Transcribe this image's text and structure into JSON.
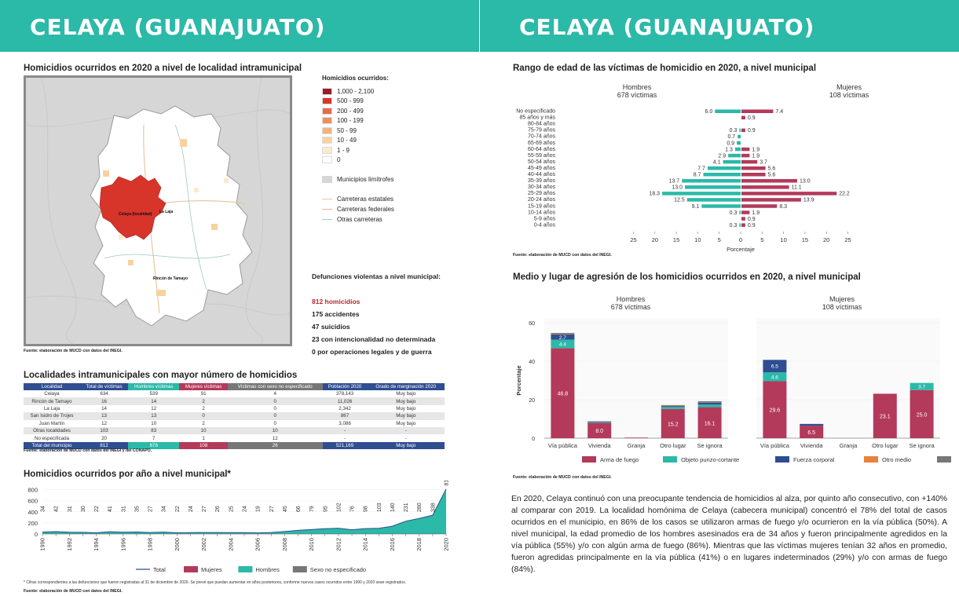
{
  "left_page": {
    "banner_title": "CELAYA (GUANAJUATO)",
    "map": {
      "title": "Homicidios ocurridos en 2020 a nivel de localidad intramunicipal",
      "labels": [
        "Celaya (localidad)",
        "La Laja",
        "Rincón de Tamayo"
      ],
      "legend_title": "Homicidios ocurridos:",
      "legend_items": [
        {
          "label": "1,000 - 2,100",
          "color": "#9e1b22"
        },
        {
          "label": "500 - 999",
          "color": "#d7342a"
        },
        {
          "label": "200 - 499",
          "color": "#e9694a"
        },
        {
          "label": "100 - 199",
          "color": "#f08f5c"
        },
        {
          "label": "50 - 99",
          "color": "#f4b37a"
        },
        {
          "label": "10 - 49",
          "color": "#f8d29d"
        },
        {
          "label": "1 - 9",
          "color": "#fbe9cd"
        },
        {
          "label": "0",
          "color": "#ffffff"
        }
      ],
      "legend_muni": "Municipios limítrofes",
      "legend_roads": [
        {
          "label": "Carreteras estatales",
          "color": "#e7c7a1"
        },
        {
          "label": "Carreteras federales",
          "color": "#e7b38b"
        },
        {
          "label": "Otras carreteras",
          "color": "#9fc7c8"
        }
      ],
      "source": "Fuente: elaboración de MUCD con datos del INEGI."
    },
    "deaths": {
      "title": "Defunciones violentas a nivel municipal:",
      "homicides": "812 homicidios",
      "items": [
        "175 accidentes",
        "47 suicidios",
        "23 con intencionalidad no determinada",
        "0 por operaciones legales y de guerra"
      ]
    },
    "table": {
      "title": "Localidades intramunicipales con mayor número de homicidios",
      "headers": [
        "Localidad",
        "Total de víctimas",
        "Hombres víctimas",
        "Mujeres víctimas",
        "Víctimas con sexo no especificado",
        "Población 2020",
        "Grado de marginación 2020"
      ],
      "rows": [
        [
          "Celaya",
          "634",
          "539",
          "91",
          "4",
          "378,143",
          "Muy bajo"
        ],
        [
          "Rincón de Tamayo",
          "16",
          "14",
          "2",
          "0",
          "11,026",
          "Muy bajo"
        ],
        [
          "La Laja",
          "14",
          "12",
          "2",
          "0",
          "2,342",
          "Muy bajo"
        ],
        [
          "San Isidro de Trojes",
          "13",
          "13",
          "0",
          "0",
          "867",
          "Muy bajo"
        ],
        [
          "Juan Martín",
          "12",
          "10",
          "2",
          "0",
          "3,086",
          "Muy bajo"
        ],
        [
          "Otras localidades",
          "103",
          "83",
          "10",
          "10",
          "-",
          "-"
        ],
        [
          "No especificada",
          "20",
          "7",
          "1",
          "12",
          "-",
          "-"
        ]
      ],
      "total": [
        "Total del municipio",
        "812",
        "678",
        "108",
        "26",
        "521,169",
        "Muy bajo"
      ],
      "source": "Fuente: elaboración de MUCD con datos del INEGI y del CONAPO."
    },
    "yearly": {
      "title": "Homicidios ocurridos por año a nivel municipal*",
      "footnote": "* Cifras correspondientes a las defunciones que fueron registradas al 31 de diciembre de 2020. Se prevé que puedan aumentar en años posteriores, conforme nuevos casos ocurridos entre 1990 y 2020 sean registrados.",
      "source": "Fuente: elaboración de MUCD con datos del INEGI.",
      "legend": [
        "Total",
        "Mujeres",
        "Hombres",
        "Sexo no especificado"
      ]
    }
  },
  "right_page": {
    "banner_title": "CELAYA (GUANAJUATO)",
    "age_chart": {
      "title": "Rango de edad de las víctimas de homicidio en 2020, a nivel municipal",
      "men_header": "Hombres",
      "men_count": "678 víctimas",
      "women_header": "Mujeres",
      "women_count": "108 víctimas",
      "xlabel": "Porcentaje",
      "source": "Fuente: elaboración de MUCD con datos del INEGI."
    },
    "place_chart": {
      "title": "Medio y lugar de agresión de los homicidios ocurridos en 2020, a nivel municipal",
      "men_header": "Hombres",
      "men_count": "678 víctimas",
      "women_header": "Mujeres",
      "women_count": "108 víctimas",
      "ylabel": "Porcentaje",
      "source": "Fuente: elaboración de MUCD con datos del INEGI."
    },
    "paragraph": "En 2020, Celaya continuó con una preocupante tendencia de homicidios al alza, por quinto año consecutivo, con +140% al comparar con 2019. La localidad homónima de Celaya (cabecera municipal) concentró el 78% del total de casos ocurridos en el municipio, en 86% de los casos se utilizaron armas de fuego y/o ocurrieron en la vía pública (50%). A nivel municipal, la edad promedio de los hombres asesinados era de 34 años y fueron principalmente agredidos en la vía pública (55%) y/o con algún arma de fuego (86%). Mientras que las víctimas mujeres tenían 32 años en promedio, fueron agredidas principalmente en la vía pública (41%) o en lugares indeterminados (29%) y/o con armas de fuego (84%)."
  },
  "chart_data": [
    {
      "type": "area",
      "title": "Homicidios ocurridos por año a nivel municipal*",
      "x": [
        1990,
        1991,
        1992,
        1993,
        1994,
        1995,
        1996,
        1997,
        1998,
        1999,
        2000,
        2001,
        2002,
        2003,
        2004,
        2005,
        2006,
        2007,
        2008,
        2009,
        2010,
        2011,
        2012,
        2013,
        2014,
        2015,
        2016,
        2017,
        2018,
        2019,
        2020
      ],
      "xticks": [
        "1990",
        "1992",
        "1994",
        "1996",
        "1998",
        "2000",
        "2002",
        "2004",
        "2006",
        "2008",
        "2010",
        "2012",
        "2014",
        "2016",
        "2018",
        "2020"
      ],
      "series": [
        {
          "name": "Total",
          "values": [
            34,
            42,
            31,
            30,
            22,
            41,
            31,
            35,
            27,
            34,
            22,
            24,
            27,
            26,
            25,
            24,
            19,
            27,
            45,
            66,
            79,
            95,
            102,
            76,
            98,
            103,
            140,
            231,
            280,
            338,
            812
          ]
        }
      ],
      "yticks": [
        "0",
        "200",
        "400",
        "600",
        "800"
      ],
      "ylim": [
        0,
        850
      ],
      "legend": [
        "Total",
        "Mujeres",
        "Hombres",
        "Sexo no especificado"
      ],
      "colors": {
        "Total": "#2f4e91",
        "Mujeres": "#b33a5a",
        "Hombres": "#2bb9a8",
        "Sexo no especificado": "#777777"
      }
    },
    {
      "type": "bar",
      "orientation": "horizontal-pyramid",
      "title": "Rango de edad de las víctimas de homicidio en 2020, a nivel municipal",
      "categories": [
        "No especificado",
        "85 años y más",
        "80-84 años",
        "75-79 años",
        "70-74 años",
        "65-69 años",
        "60-64 años",
        "55-59 años",
        "50-54 años",
        "45-49 años",
        "40-44 años",
        "35-39 años",
        "30-34 años",
        "25-29 años",
        "20-24 años",
        "15-19 años",
        "10-14 años",
        "5-9 años",
        "0-4 años"
      ],
      "series": [
        {
          "name": "Hombres",
          "values": [
            6.0,
            null,
            null,
            0.3,
            0.7,
            0.9,
            1.3,
            2.9,
            4.1,
            7.7,
            8.7,
            13.7,
            13.0,
            18.3,
            12.5,
            9.1,
            0.3,
            null,
            0.3
          ],
          "color": "#2bb9a8"
        },
        {
          "name": "Mujeres",
          "values": [
            7.4,
            0.9,
            null,
            0.9,
            null,
            null,
            1.9,
            1.9,
            3.7,
            5.6,
            5.6,
            13.0,
            11.1,
            22.2,
            13.9,
            8.3,
            1.9,
            0.9,
            0.9
          ],
          "color": "#b33a5a"
        }
      ],
      "xticks": [
        "25",
        "20",
        "15",
        "10",
        "5",
        "0",
        "5",
        "10",
        "15",
        "20",
        "25"
      ],
      "xlim": [
        0,
        25
      ],
      "xlabel": "Porcentaje"
    },
    {
      "type": "bar",
      "orientation": "stacked-vertical",
      "title": "Medio y lugar de agresión de los homicidios ocurridos en 2020, a nivel municipal",
      "categories": [
        "Vía pública",
        "Vivienda",
        "Granja",
        "Otro lugar",
        "Se ignora"
      ],
      "yticks": [
        "0",
        "20",
        "40",
        "60"
      ],
      "ylim": [
        0,
        60
      ],
      "ylabel": "Porcentaje",
      "legend": [
        "Arma de fuego",
        "Objeto punzo-cortante",
        "Fuerza corporal",
        "Otro medio",
        "Se ignora"
      ],
      "colors": [
        "#b33a5a",
        "#2bb9a8",
        "#2f4e91",
        "#e8823b",
        "#777777"
      ],
      "panels": [
        {
          "name": "Hombres",
          "stacks": [
            {
              "values": [
                46.8,
                4.4,
                2.7,
                0.2,
                0.6
              ],
              "labels": [
                "46.8",
                "4.4",
                "2.7",
                "",
                ""
              ]
            },
            {
              "values": [
                8.0,
                0.4,
                0.3,
                0,
                0.1
              ],
              "labels": [
                "8.0",
                "",
                "",
                "",
                ""
              ]
            },
            {
              "values": [
                0.3,
                0,
                0,
                0,
                0
              ],
              "labels": [
                "",
                "",
                "",
                "",
                ""
              ]
            },
            {
              "values": [
                15.2,
                1.0,
                0.5,
                0.2,
                0.3
              ],
              "labels": [
                "15.2",
                "",
                "",
                "",
                ""
              ]
            },
            {
              "values": [
                16.1,
                1.4,
                1.0,
                0.1,
                0.6
              ],
              "labels": [
                "16.1",
                "",
                "",
                "",
                ""
              ]
            }
          ]
        },
        {
          "name": "Mujeres",
          "stacks": [
            {
              "values": [
                29.6,
                4.6,
                6.5,
                0,
                0
              ],
              "labels": [
                "29.6",
                "4.6",
                "6.5",
                "",
                ""
              ]
            },
            {
              "values": [
                6.5,
                0,
                0.9,
                0,
                0
              ],
              "labels": [
                "6.5",
                "",
                "",
                "",
                ""
              ]
            },
            {
              "values": [
                0,
                0,
                0,
                0,
                0
              ],
              "labels": [
                "",
                "",
                "",
                "",
                ""
              ]
            },
            {
              "values": [
                23.1,
                0,
                0,
                0,
                0
              ],
              "labels": [
                "23.1",
                "",
                "",
                "",
                ""
              ]
            },
            {
              "values": [
                25.0,
                3.7,
                0,
                0,
                0
              ],
              "labels": [
                "25.0",
                "3.7",
                "",
                "",
                ""
              ]
            }
          ]
        }
      ]
    }
  ]
}
